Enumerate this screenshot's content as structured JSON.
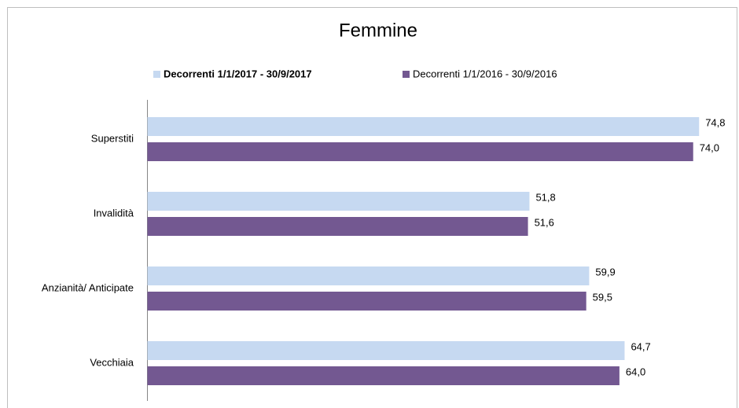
{
  "chart_data": {
    "type": "bar",
    "orientation": "horizontal",
    "title": "Femmine",
    "categories": [
      "Superstiti",
      "Invalidità",
      "Anzianità/ Anticipate",
      "Vecchiaia"
    ],
    "series": [
      {
        "name": "Decorrenti 1/1/2017 - 30/9/2017",
        "color": "#c6d9f1",
        "values": [
          74.8,
          51.8,
          59.9,
          64.7
        ],
        "value_labels": [
          "74,8",
          "51,8",
          "59,9",
          "64,7"
        ]
      },
      {
        "name": "Decorrenti 1/1/2016 - 30/9/2016",
        "color": "#735891",
        "values": [
          74.0,
          51.6,
          59.5,
          64.0
        ],
        "value_labels": [
          "74,0",
          "51,6",
          "59,5",
          "64,0"
        ]
      }
    ],
    "xlim": [
      0,
      80
    ],
    "legend": "top"
  }
}
